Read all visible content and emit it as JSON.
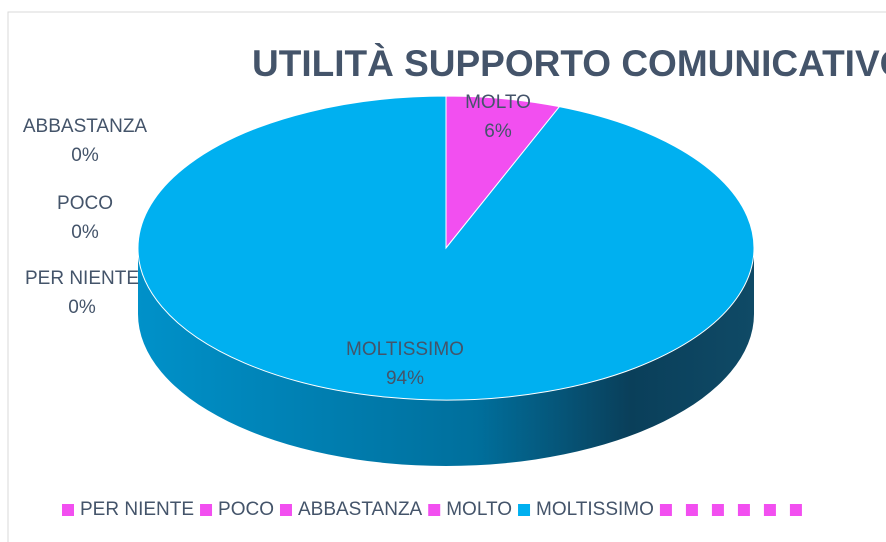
{
  "chart_data": {
    "type": "pie3d",
    "title": "UTILITÀ SUPPORTO COMUNICATIVO",
    "categories": [
      "PER NIENTE",
      "POCO",
      "ABBASTANZA",
      "MOLTO",
      "MOLTISSIMO",
      null,
      null,
      null,
      null,
      null,
      null
    ],
    "values": [
      0,
      0,
      0,
      6,
      94,
      0,
      0,
      0,
      0,
      0,
      0
    ],
    "value_labels": [
      "0%",
      "0%",
      "0%",
      "6%",
      "94%",
      null,
      null,
      null,
      null,
      null,
      null
    ],
    "colors": [
      "#f24ff0",
      "#f24ff0",
      "#f24ff0",
      "#f24ff0",
      "#00b0f0",
      "#f24ff0",
      "#f24ff0",
      "#f24ff0",
      "#f24ff0",
      "#f24ff0",
      "#f24ff0"
    ],
    "legend": "bottom"
  }
}
